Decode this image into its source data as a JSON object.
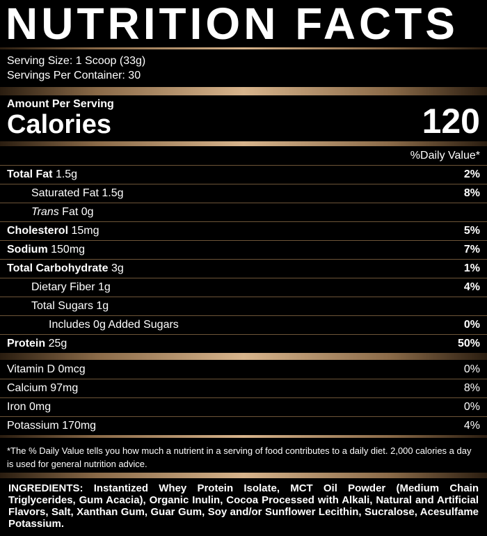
{
  "title": "NUTRITION FACTS",
  "serving": {
    "size": "Serving Size: 1 Scoop (33g)",
    "per_container": "Servings Per Container: 30"
  },
  "calories": {
    "amount_per_serving": "Amount Per Serving",
    "label": "Calories",
    "value": "120"
  },
  "daily_value_header": "%Daily Value*",
  "nutrients": [
    {
      "name": "Total Fat",
      "amount": "1.5g",
      "dv": "2%"
    },
    {
      "name": "Saturated Fat",
      "amount": "1.5g",
      "dv": "8%"
    },
    {
      "italic": "Trans",
      "name": "Fat",
      "amount": "0g"
    },
    {
      "name": "Cholesterol",
      "amount": "15mg",
      "dv": "5%"
    },
    {
      "name": "Sodium",
      "amount": "150mg",
      "dv": "7%"
    },
    {
      "name": "Total Carbohydrate",
      "amount": "3g",
      "dv": "1%"
    },
    {
      "name": "Dietary Fiber",
      "amount": "1g",
      "dv": "4%"
    },
    {
      "name": "Total Sugars",
      "amount": "1g"
    },
    {
      "name": "Includes 0g Added Sugars",
      "dv": "0%"
    },
    {
      "name": "Protein",
      "amount": "25g",
      "dv": "50%"
    }
  ],
  "vitamins": [
    {
      "name": "Vitamin D 0mcg",
      "dv": "0%"
    },
    {
      "name": "Calcium 97mg",
      "dv": "8%"
    },
    {
      "name": "Iron 0mg",
      "dv": "0%"
    },
    {
      "name": "Potassium 170mg",
      "dv": "4%"
    }
  ],
  "footnote": "*The % Daily Value tells you how much a nutrient in a serving of food contributes to a daily diet. 2,000 calories a day is used for general nutrition advice.",
  "ingredients": "INGREDIENTS: Instantized Whey Protein Isolate, MCT Oil Powder (Medium Chain Triglycerides, Gum Acacia), Organic Inulin, Cocoa Processed with Alkali, Natural and Artificial Flavors, Salt, Xanthan Gum, Guar Gum, Soy and/or Sunflower Lecithin, Sucralose, Acesulfame Potassium."
}
